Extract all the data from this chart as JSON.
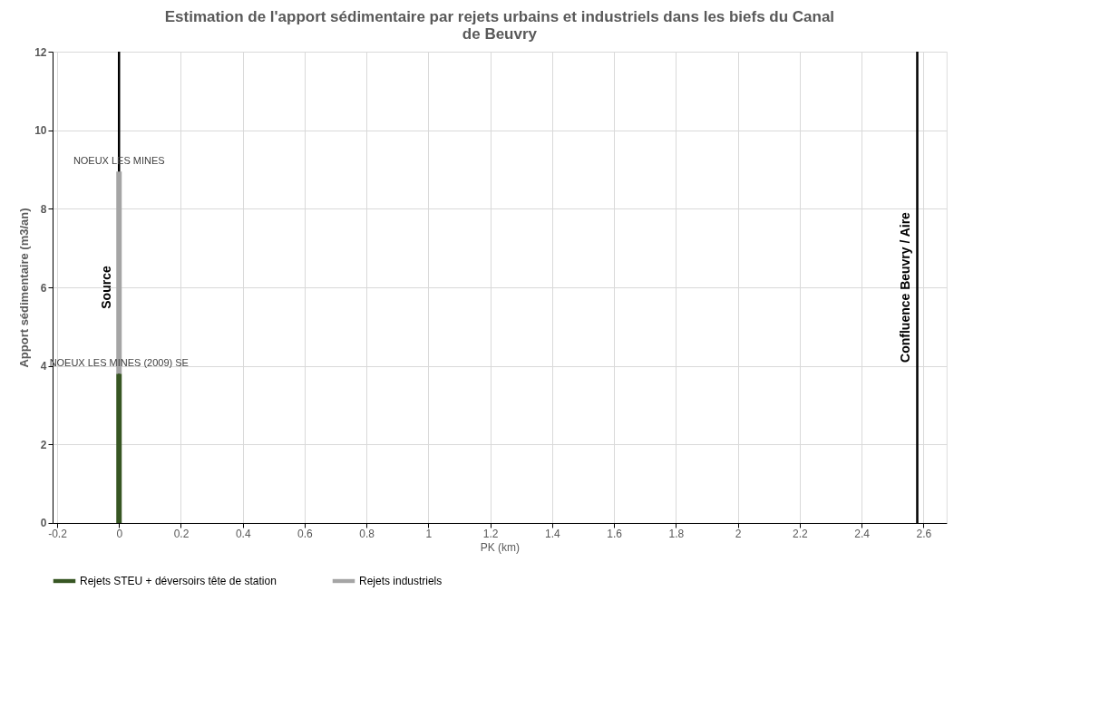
{
  "chart_data": {
    "type": "bar",
    "title": "Estimation de l'apport sédimentaire par rejets urbains et industriels dans les biefs du Canal de Beuvry",
    "xlabel": "PK (km)",
    "ylabel": "Apport sédimentaire (m3/an)",
    "x": [
      0
    ],
    "stacked": true,
    "series": [
      {
        "name": "Rejets STEU + déversoirs tête de station",
        "color": "#375623",
        "values": [
          3.8
        ]
      },
      {
        "name": "Rejets industriels",
        "color": "#a5a5a5",
        "values": [
          5.15
        ]
      }
    ],
    "xlim": [
      -0.2,
      2.66
    ],
    "xticks": [
      -0.2,
      0,
      0.2,
      0.4,
      0.6,
      0.8,
      1,
      1.2,
      1.4,
      1.6,
      1.8,
      2,
      2.2,
      2.4,
      2.6
    ],
    "ylim": [
      0,
      12
    ],
    "yticks": [
      0,
      2,
      4,
      6,
      8,
      10,
      12
    ],
    "grid": true,
    "legend": "bottom",
    "ref_lines": [
      {
        "axis": "x",
        "value": 0,
        "label": "Source",
        "color": "#000000"
      },
      {
        "axis": "x",
        "value": 2.58,
        "label": "Confluence Beuvry / Aire",
        "color": "#000000"
      }
    ],
    "annotations": [
      {
        "text": "NOEUX LES MINES",
        "x": 0,
        "y": 8.95
      },
      {
        "text": "NOEUX LES MINES (2009) SE",
        "x": 0,
        "y": 3.8
      }
    ]
  }
}
